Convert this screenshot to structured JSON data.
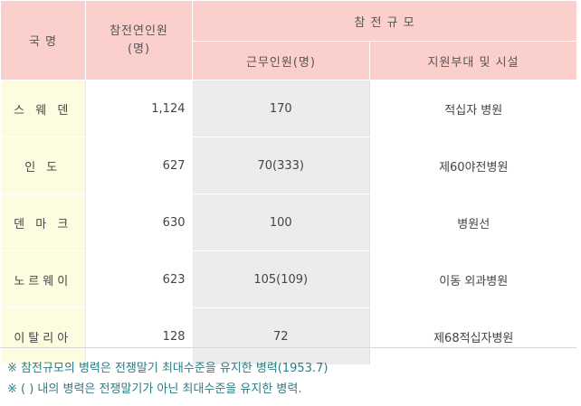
{
  "table": {
    "header": {
      "country": "국 명",
      "participants": "참전연인원\n(명)",
      "scale": "참 전 규 모",
      "staff": "근무인원(명)",
      "support": "지원부대 및 시설"
    },
    "rows": [
      {
        "country": "스 웨 덴",
        "participants": "1,124",
        "staff": "170",
        "support": "적십자 병원"
      },
      {
        "country": "인 도",
        "participants": "627",
        "staff": "70(333)",
        "support": "제60야전병원"
      },
      {
        "country": "덴 마 크",
        "participants": "630",
        "staff": "100",
        "support": "병원선"
      },
      {
        "country": "노르웨이",
        "participants": "623",
        "staff": "105(109)",
        "support": "이동 외과병원"
      },
      {
        "country": "이탈리아",
        "participants": "128",
        "staff": "72",
        "support": "제68적십자병원"
      }
    ]
  },
  "notes": [
    "※ 참전규모의 병력은 전쟁말기 최대수준을 유지한 병력(1953.7)",
    "※ ( ) 내의 병력은 전쟁말기가 아닌 최대수준을 유지한 병력."
  ],
  "colors": {
    "header_bg": "#fbd0cc",
    "country_bg": "#fdfbe0",
    "staff_bg": "#ececec",
    "note_text": "#2f7c84"
  }
}
